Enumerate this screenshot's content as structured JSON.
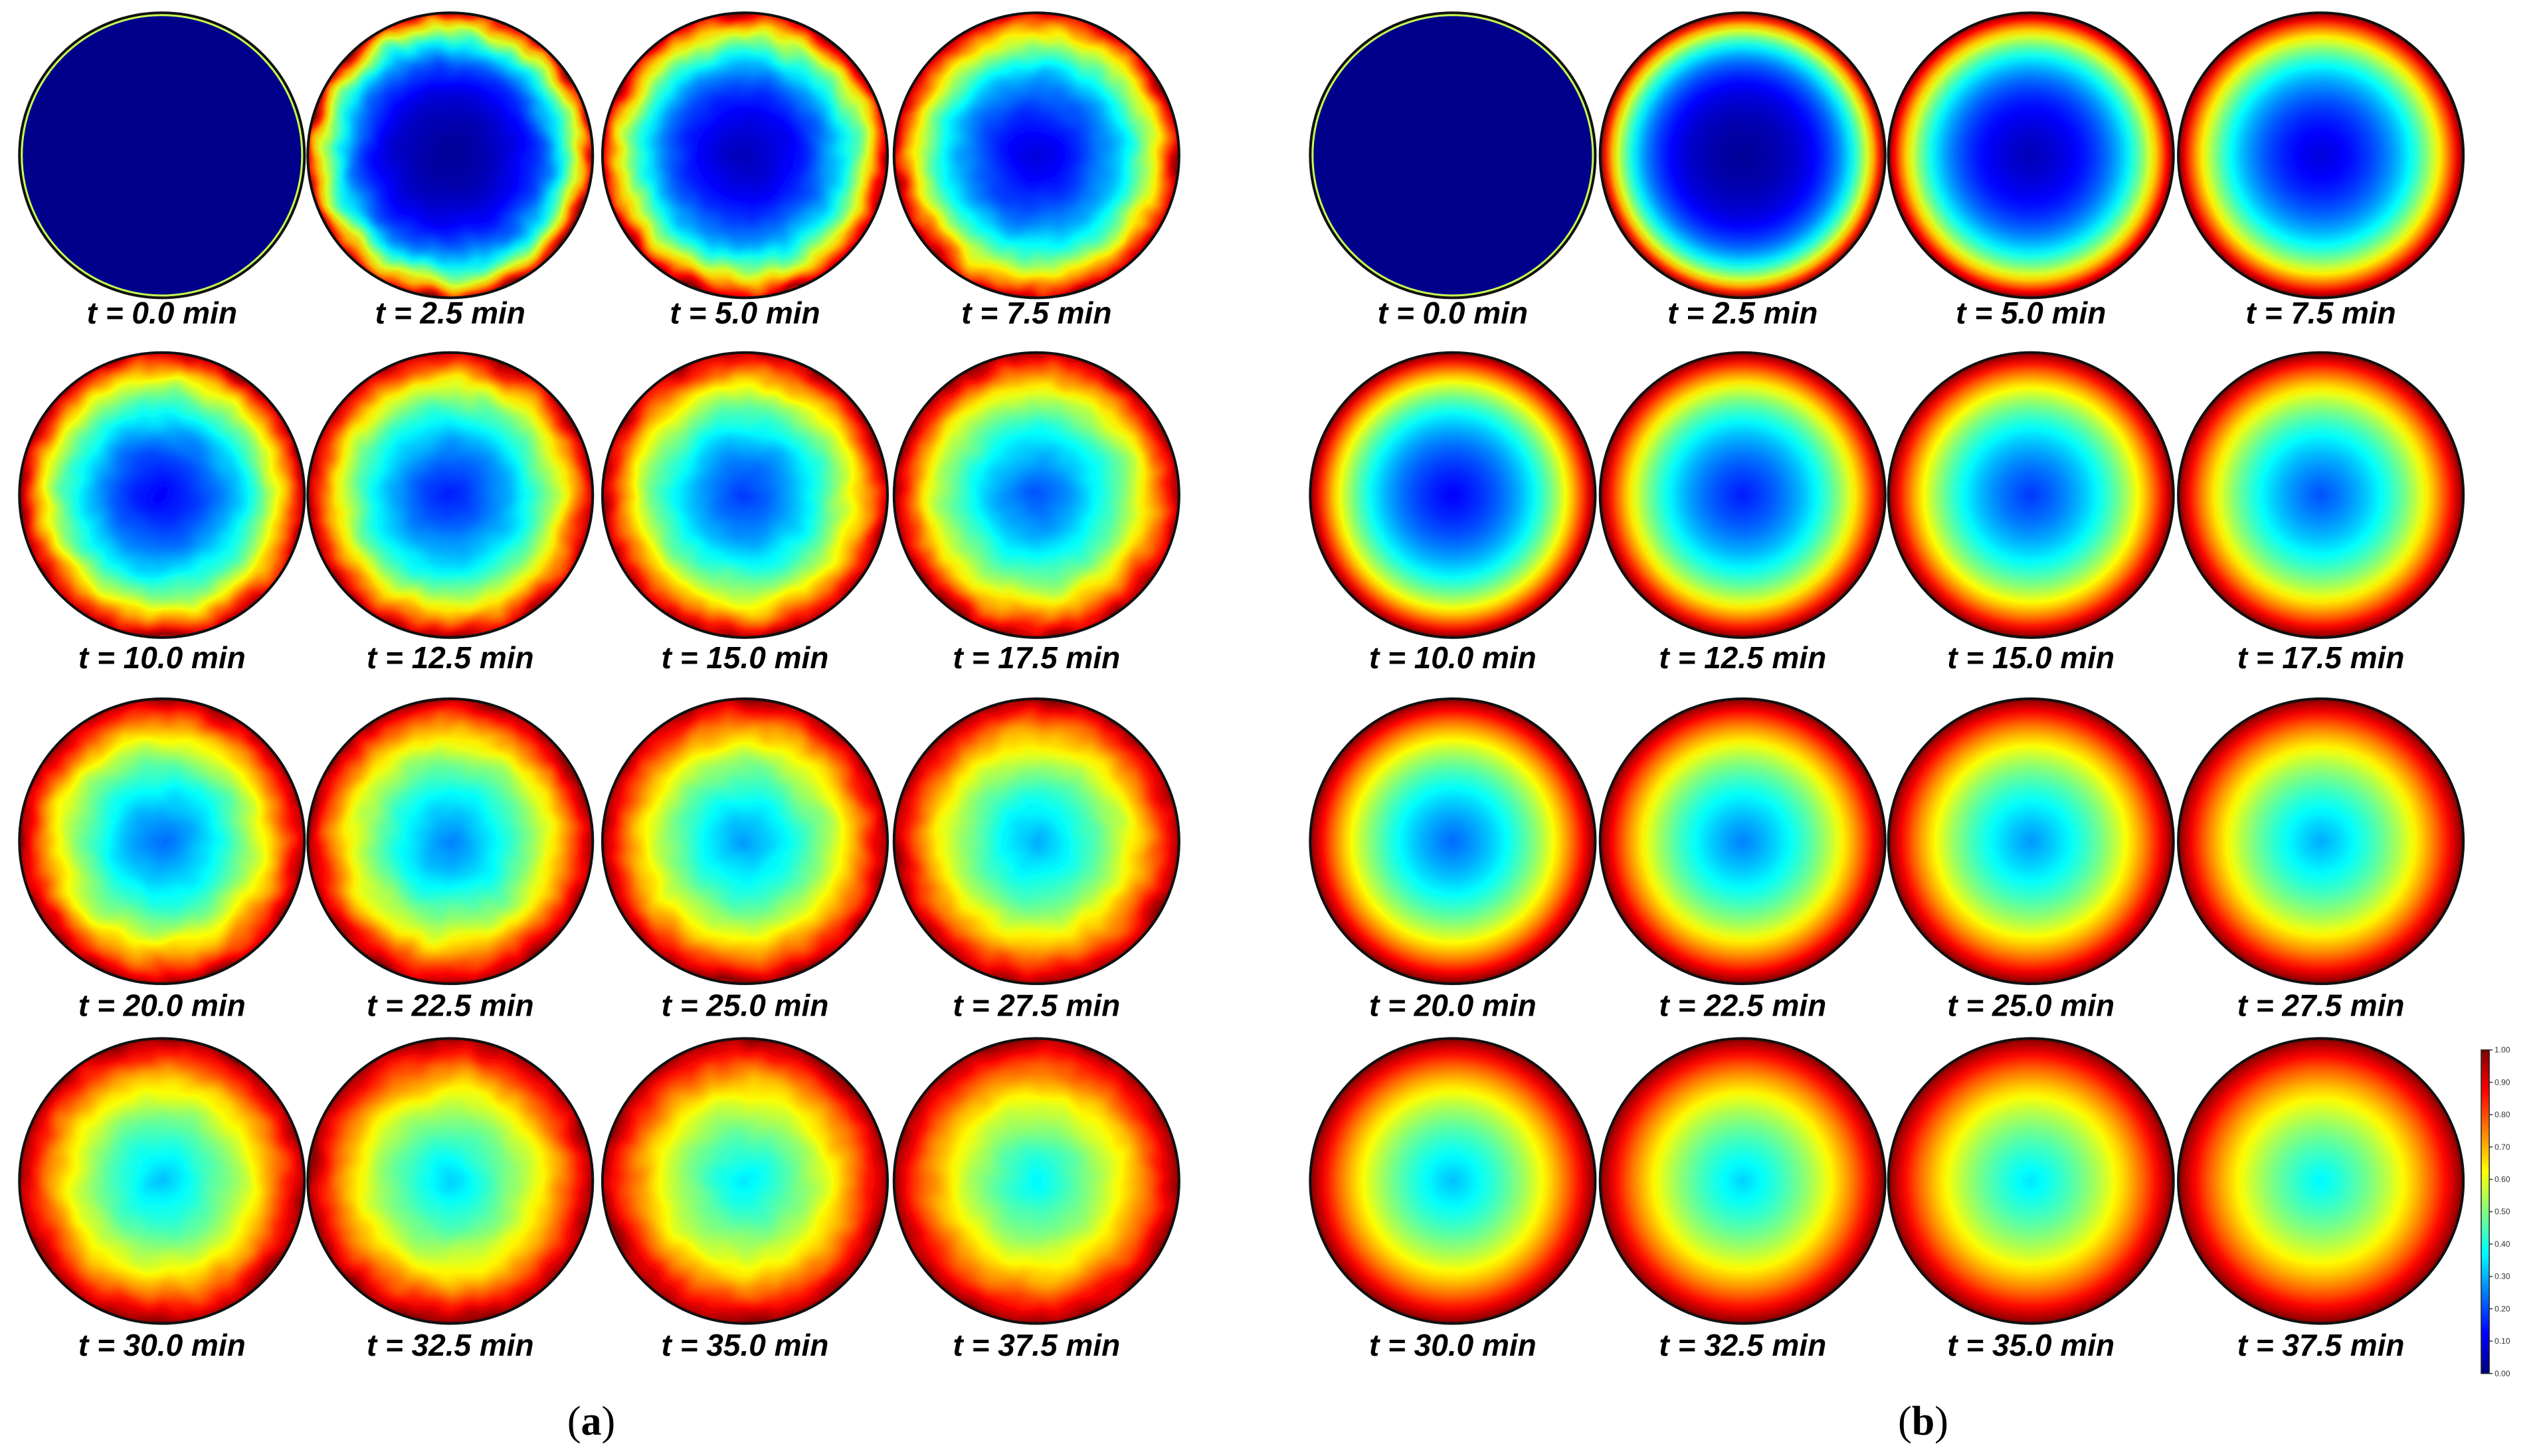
{
  "figure": {
    "panels": [
      {
        "id": "a",
        "label": {
          "open": "(",
          "letter": "a",
          "close": ")"
        },
        "style": "noisy",
        "frames": [
          {
            "label": "t = 0.0 min",
            "time_min": 0.0
          },
          {
            "label": "t = 2.5 min",
            "time_min": 2.5
          },
          {
            "label": "t = 5.0 min",
            "time_min": 5.0
          },
          {
            "label": "t = 7.5 min",
            "time_min": 7.5
          },
          {
            "label": "t = 10.0 min",
            "time_min": 10.0
          },
          {
            "label": "t = 12.5 min",
            "time_min": 12.5
          },
          {
            "label": "t = 15.0 min",
            "time_min": 15.0
          },
          {
            "label": "t = 17.5 min",
            "time_min": 17.5
          },
          {
            "label": "t = 20.0 min",
            "time_min": 20.0
          },
          {
            "label": "t = 22.5 min",
            "time_min": 22.5
          },
          {
            "label": "t = 25.0 min",
            "time_min": 25.0
          },
          {
            "label": "t = 27.5 min",
            "time_min": 27.5
          },
          {
            "label": "t = 30.0 min",
            "time_min": 30.0
          },
          {
            "label": "t = 32.5 min",
            "time_min": 32.5
          },
          {
            "label": "t = 35.0 min",
            "time_min": 35.0
          },
          {
            "label": "t = 37.5 min",
            "time_min": 37.5
          }
        ]
      },
      {
        "id": "b",
        "label": {
          "open": "(",
          "letter": "b",
          "close": ")"
        },
        "style": "smooth",
        "frames": [
          {
            "label": "t = 0.0 min",
            "time_min": 0.0
          },
          {
            "label": "t = 2.5 min",
            "time_min": 2.5
          },
          {
            "label": "t = 5.0 min",
            "time_min": 5.0
          },
          {
            "label": "t = 7.5 min",
            "time_min": 7.5
          },
          {
            "label": "t = 10.0 min",
            "time_min": 10.0
          },
          {
            "label": "t = 12.5 min",
            "time_min": 12.5
          },
          {
            "label": "t = 15.0 min",
            "time_min": 15.0
          },
          {
            "label": "t = 17.5 min",
            "time_min": 17.5
          },
          {
            "label": "t = 20.0 min",
            "time_min": 20.0
          },
          {
            "label": "t = 22.5 min",
            "time_min": 22.5
          },
          {
            "label": "t = 25.0 min",
            "time_min": 25.0
          },
          {
            "label": "t = 27.5 min",
            "time_min": 27.5
          },
          {
            "label": "t = 30.0 min",
            "time_min": 30.0
          },
          {
            "label": "t = 32.5 min",
            "time_min": 32.5
          },
          {
            "label": "t = 35.0 min",
            "time_min": 35.0
          },
          {
            "label": "t = 37.5 min",
            "time_min": 37.5
          }
        ]
      }
    ],
    "colorbar": {
      "min": 0.0,
      "max": 1.0,
      "ticks": [
        "0.00",
        "0.10",
        "0.20",
        "0.30",
        "0.40",
        "0.50",
        "0.60",
        "0.70",
        "0.80",
        "0.90",
        "1.00"
      ],
      "colormap": [
        "#00007f",
        "#0000ff",
        "#007fff",
        "#00ffff",
        "#7fff7f",
        "#ffff00",
        "#ff7f00",
        "#ff0000",
        "#7f0000"
      ]
    },
    "colors": {
      "outline": "#111111",
      "initial_fill": "#00008a",
      "initial_rim": "#c8ff50"
    }
  }
}
